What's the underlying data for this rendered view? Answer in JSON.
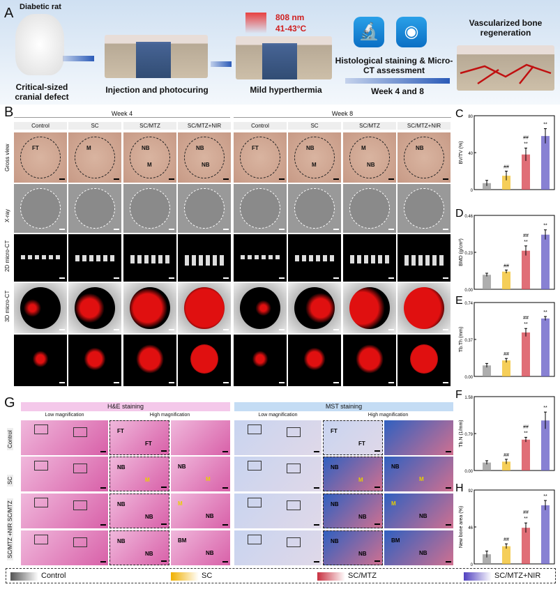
{
  "panelA": {
    "label": "A",
    "rat_title": "Diabetic rat",
    "step1": "Critical-sized cranial defect",
    "step2": "Injection and photocuring",
    "step3": "Mild hyperthermia",
    "laser": "808 nm",
    "temp": "41-43°C",
    "assess": "Histological staining & Micro-CT assessment",
    "time": "Week 4 and 8",
    "result": "Vascularized bone regeneration",
    "icons": [
      "microscope-icon",
      "micro-ct-scanner-icon"
    ]
  },
  "panelB": {
    "label": "B",
    "weeks": [
      "Week 4",
      "Week 8"
    ],
    "groups": [
      "Control",
      "SC",
      "SC/MTZ",
      "SC/MTZ+NIR"
    ],
    "rows": [
      "Gross view",
      "X-ray",
      "2D micro-CT",
      "3D micro-CT",
      ""
    ],
    "gross_labels": [
      [
        "FT"
      ],
      [
        "M"
      ],
      [
        "NB",
        "M"
      ],
      [
        "NB",
        "NB"
      ],
      [
        "FT"
      ],
      [
        "NB",
        "M"
      ],
      [
        "M",
        "NB"
      ],
      [
        "NB"
      ]
    ]
  },
  "panelG": {
    "label": "G",
    "he": "H&E staining",
    "mst": "MST staining",
    "low": "Low magnification",
    "high": "High magnification",
    "rows": [
      "Control",
      "SC",
      "SC/MTZ",
      "SC/MTZ\n+NIR"
    ],
    "labels": [
      [
        "FT",
        "FT"
      ],
      [
        "NB",
        "M",
        "NB",
        "M"
      ],
      [
        "NB",
        "NB",
        "M",
        "NB"
      ],
      [
        "NB",
        "NB",
        "BM",
        "NB"
      ]
    ]
  },
  "legend": [
    "Control",
    "SC",
    "SC/MTZ",
    "SC/MTZ+NIR"
  ],
  "colors": {
    "Control": "#9a9a9a",
    "SC": "#f2c230",
    "SC/MTZ": "#d84a55",
    "SC/MTZ+NIR": "#6a62c8"
  },
  "chart_data": [
    {
      "panel": "C",
      "type": "bar",
      "categories": [
        "Control",
        "SC",
        "SC/MTZ",
        "SC/MTZ+NIR"
      ],
      "values": [
        7,
        15,
        38,
        58
      ],
      "errors": [
        3,
        5,
        7,
        8
      ],
      "ylabel": "BV/TV (%)",
      "ylim": [
        0,
        80
      ],
      "yticks": [
        "0",
        "40",
        "80"
      ],
      "annotations": [
        "",
        "##",
        "##\n**",
        "**"
      ]
    },
    {
      "panel": "D",
      "type": "bar",
      "categories": [
        "Control",
        "SC",
        "SC/MTZ",
        "SC/MTZ+NIR"
      ],
      "values": [
        0.09,
        0.11,
        0.24,
        0.34
      ],
      "errors": [
        0.01,
        0.01,
        0.03,
        0.03
      ],
      "ylabel": "BMD (g/cm³)",
      "ylim": [
        0,
        0.46
      ],
      "yticks": [
        "0.00",
        "0.23",
        "0.46"
      ],
      "annotations": [
        "",
        "##",
        "##\n**",
        "**"
      ]
    },
    {
      "panel": "E",
      "type": "bar",
      "categories": [
        "Control",
        "SC",
        "SC/MTZ",
        "SC/MTZ+NIR"
      ],
      "values": [
        0.11,
        0.16,
        0.44,
        0.58
      ],
      "errors": [
        0.02,
        0.02,
        0.04,
        0.02
      ],
      "ylabel": "Tb.Th (mm)",
      "ylim": [
        0,
        0.74
      ],
      "yticks": [
        "0.00",
        "0.37",
        "0.74"
      ],
      "annotations": [
        "",
        "##",
        "##\n**",
        "**"
      ]
    },
    {
      "panel": "F",
      "type": "bar",
      "categories": [
        "Control",
        "SC",
        "SC/MTZ",
        "SC/MTZ+NIR"
      ],
      "values": [
        0.17,
        0.19,
        0.66,
        1.07
      ],
      "errors": [
        0.04,
        0.05,
        0.05,
        0.18
      ],
      "ylabel": "Tb.N (1/mm)",
      "ylim": [
        0,
        1.58
      ],
      "yticks": [
        "0.00",
        "0.79",
        "1.58"
      ],
      "annotations": [
        "",
        "##",
        "##\n**",
        "**"
      ]
    },
    {
      "panel": "H",
      "type": "bar",
      "categories": [
        "Control",
        "SC",
        "SC/MTZ",
        "SC/MTZ+NIR"
      ],
      "values": [
        12,
        22,
        45,
        73
      ],
      "errors": [
        4,
        3,
        6,
        6
      ],
      "ylabel": "New bone area (%)",
      "ylim": [
        0,
        92
      ],
      "yticks": [
        "0",
        "46",
        "92"
      ],
      "annotations": [
        "",
        "##",
        "##\n**",
        "**"
      ]
    }
  ]
}
